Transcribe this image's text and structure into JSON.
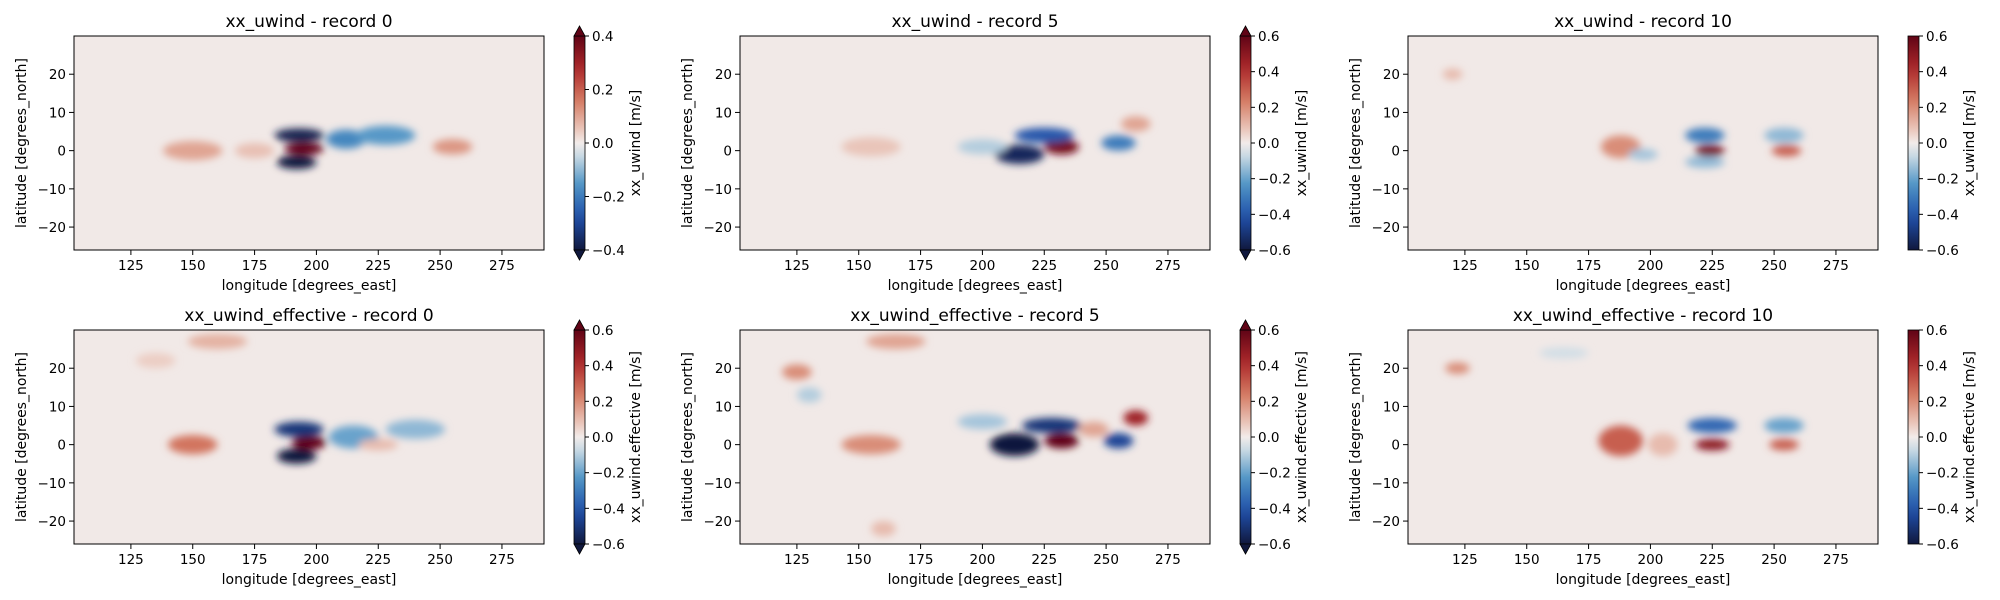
{
  "chart_data": [
    {
      "type": "heatmap",
      "title": "xx_uwind - record 0",
      "xlabel": "longitude [degrees_east]",
      "ylabel": "latitude [degrees_north]",
      "colorbar_label": "xx_uwind [m/s]",
      "xticks": [
        125,
        150,
        175,
        200,
        225,
        250,
        275
      ],
      "yticks": [
        -20,
        -10,
        0,
        10,
        20
      ],
      "xlim": [
        102,
        292
      ],
      "ylim": [
        -26,
        30
      ],
      "clim": [
        -0.4,
        0.4
      ],
      "cticks": [
        -0.4,
        -0.2,
        0.0,
        0.2,
        0.4
      ],
      "extend": "both",
      "features": [
        {
          "lon": 195,
          "lat": 0.5,
          "value": 0.4,
          "wlon": 8,
          "wlat": 1.6
        },
        {
          "lon": 193,
          "lat": 4,
          "value": -0.38,
          "wlon": 10,
          "wlat": 1.8
        },
        {
          "lon": 192,
          "lat": -3,
          "value": -0.4,
          "wlon": 8,
          "wlat": 1.8
        },
        {
          "lon": 212,
          "lat": 3,
          "value": -0.18,
          "wlon": 8,
          "wlat": 2.5
        },
        {
          "lon": 228,
          "lat": 4,
          "value": -0.15,
          "wlon": 12,
          "wlat": 2.5
        },
        {
          "lon": 255,
          "lat": 1,
          "value": 0.12,
          "wlon": 8,
          "wlat": 2
        },
        {
          "lon": 150,
          "lat": 0,
          "value": 0.1,
          "wlon": 12,
          "wlat": 2.5
        },
        {
          "lon": 175,
          "lat": 0,
          "value": 0.06,
          "wlon": 8,
          "wlat": 2
        }
      ]
    },
    {
      "type": "heatmap",
      "title": "xx_uwind - record 5",
      "xlabel": "longitude [degrees_east]",
      "ylabel": "latitude [degrees_north]",
      "colorbar_label": "xx_uwind [m/s]",
      "xticks": [
        125,
        150,
        175,
        200,
        225,
        250,
        275
      ],
      "yticks": [
        -20,
        -10,
        0,
        10,
        20
      ],
      "xlim": [
        102,
        292
      ],
      "ylim": [
        -26,
        30
      ],
      "clim": [
        -0.6,
        0.6
      ],
      "cticks": [
        -0.6,
        -0.4,
        -0.2,
        0.0,
        0.2,
        0.4,
        0.6
      ],
      "extend": "both",
      "features": [
        {
          "lon": 232,
          "lat": 1,
          "value": 0.55,
          "wlon": 7,
          "wlat": 2
        },
        {
          "lon": 215,
          "lat": -1,
          "value": -0.55,
          "wlon": 10,
          "wlat": 2.5
        },
        {
          "lon": 225,
          "lat": 4,
          "value": -0.4,
          "wlon": 12,
          "wlat": 2
        },
        {
          "lon": 255,
          "lat": 2,
          "value": -0.3,
          "wlon": 7,
          "wlat": 2
        },
        {
          "lon": 200,
          "lat": 1,
          "value": -0.1,
          "wlon": 10,
          "wlat": 2
        },
        {
          "lon": 262,
          "lat": 7,
          "value": 0.15,
          "wlon": 6,
          "wlat": 2
        },
        {
          "lon": 155,
          "lat": 1,
          "value": 0.08,
          "wlon": 12,
          "wlat": 2.5
        }
      ]
    },
    {
      "type": "heatmap",
      "title": "xx_uwind - record 10",
      "xlabel": "longitude [degrees_east]",
      "ylabel": "latitude [degrees_north]",
      "colorbar_label": "xx_uwind [m/s]",
      "xticks": [
        125,
        150,
        175,
        200,
        225,
        250,
        275
      ],
      "yticks": [
        -20,
        -10,
        0,
        10,
        20
      ],
      "xlim": [
        102,
        292
      ],
      "ylim": [
        -26,
        30
      ],
      "clim": [
        -0.6,
        0.6
      ],
      "cticks": [
        -0.6,
        -0.4,
        -0.2,
        0.0,
        0.2,
        0.4,
        0.6
      ],
      "extend": "neither",
      "features": [
        {
          "lon": 224,
          "lat": 0,
          "value": 0.55,
          "wlon": 6,
          "wlat": 1.5
        },
        {
          "lon": 222,
          "lat": 4,
          "value": -0.3,
          "wlon": 8,
          "wlat": 2
        },
        {
          "lon": 222,
          "lat": -3,
          "value": -0.15,
          "wlon": 8,
          "wlat": 1.5
        },
        {
          "lon": 255,
          "lat": 0,
          "value": 0.3,
          "wlon": 6,
          "wlat": 1.5
        },
        {
          "lon": 254,
          "lat": 4,
          "value": -0.15,
          "wlon": 8,
          "wlat": 2
        },
        {
          "lon": 188,
          "lat": 1,
          "value": 0.2,
          "wlon": 8,
          "wlat": 3
        },
        {
          "lon": 197,
          "lat": -1,
          "value": -0.12,
          "wlon": 6,
          "wlat": 1.5
        },
        {
          "lon": 120,
          "lat": 20,
          "value": 0.1,
          "wlon": 4,
          "wlat": 1.5
        }
      ]
    },
    {
      "type": "heatmap",
      "title": "xx_uwind_effective - record 0",
      "xlabel": "longitude [degrees_east]",
      "ylabel": "latitude [degrees_north]",
      "colorbar_label": "xx_uwind.effective [m/s]",
      "xticks": [
        125,
        150,
        175,
        200,
        225,
        250,
        275
      ],
      "yticks": [
        -20,
        -10,
        0,
        10,
        20
      ],
      "xlim": [
        102,
        292
      ],
      "ylim": [
        -26,
        30
      ],
      "clim": [
        -0.6,
        0.6
      ],
      "cticks": [
        -0.6,
        -0.4,
        -0.2,
        0.0,
        0.2,
        0.4,
        0.6
      ],
      "extend": "both",
      "features": [
        {
          "lon": 197,
          "lat": 0.5,
          "value": 0.6,
          "wlon": 7,
          "wlat": 1.8
        },
        {
          "lon": 193,
          "lat": 4,
          "value": -0.5,
          "wlon": 10,
          "wlat": 2
        },
        {
          "lon": 192,
          "lat": -3,
          "value": -0.6,
          "wlon": 8,
          "wlat": 2
        },
        {
          "lon": 150,
          "lat": 0,
          "value": 0.25,
          "wlon": 10,
          "wlat": 2.5
        },
        {
          "lon": 215,
          "lat": 2,
          "value": -0.2,
          "wlon": 10,
          "wlat": 3
        },
        {
          "lon": 240,
          "lat": 4,
          "value": -0.15,
          "wlon": 12,
          "wlat": 2.5
        },
        {
          "lon": 225,
          "lat": 0,
          "value": 0.1,
          "wlon": 8,
          "wlat": 1.5
        },
        {
          "lon": 160,
          "lat": 27,
          "value": 0.12,
          "wlon": 12,
          "wlat": 2
        },
        {
          "lon": 135,
          "lat": 22,
          "value": 0.06,
          "wlon": 8,
          "wlat": 2
        }
      ]
    },
    {
      "type": "heatmap",
      "title": "xx_uwind_effective - record 5",
      "xlabel": "longitude [degrees_east]",
      "ylabel": "latitude [degrees_north]",
      "colorbar_label": "xx_uwind.effective [m/s]",
      "xticks": [
        125,
        150,
        175,
        200,
        225,
        250,
        275
      ],
      "yticks": [
        -20,
        -10,
        0,
        10,
        20
      ],
      "xlim": [
        102,
        292
      ],
      "ylim": [
        -26,
        30
      ],
      "clim": [
        -0.6,
        0.6
      ],
      "cticks": [
        -0.6,
        -0.4,
        -0.2,
        0.0,
        0.2,
        0.4,
        0.6
      ],
      "extend": "both",
      "features": [
        {
          "lon": 232,
          "lat": 1,
          "value": 0.6,
          "wlon": 7,
          "wlat": 2
        },
        {
          "lon": 213,
          "lat": 0,
          "value": -0.6,
          "wlon": 10,
          "wlat": 3
        },
        {
          "lon": 228,
          "lat": 5,
          "value": -0.5,
          "wlon": 12,
          "wlat": 2
        },
        {
          "lon": 255,
          "lat": 1,
          "value": -0.45,
          "wlon": 6,
          "wlat": 2
        },
        {
          "lon": 262,
          "lat": 7,
          "value": 0.45,
          "wlon": 5,
          "wlat": 2
        },
        {
          "lon": 245,
          "lat": 4,
          "value": 0.15,
          "wlon": 6,
          "wlat": 2
        },
        {
          "lon": 155,
          "lat": 0,
          "value": 0.2,
          "wlon": 12,
          "wlat": 2.5
        },
        {
          "lon": 125,
          "lat": 19,
          "value": 0.2,
          "wlon": 6,
          "wlat": 2
        },
        {
          "lon": 165,
          "lat": 27,
          "value": 0.15,
          "wlon": 12,
          "wlat": 2
        },
        {
          "lon": 130,
          "lat": 13,
          "value": -0.1,
          "wlon": 5,
          "wlat": 2
        },
        {
          "lon": 200,
          "lat": 6,
          "value": -0.12,
          "wlon": 10,
          "wlat": 2
        },
        {
          "lon": 160,
          "lat": -22,
          "value": 0.1,
          "wlon": 5,
          "wlat": 2
        }
      ]
    },
    {
      "type": "heatmap",
      "title": "xx_uwind_effective - record 10",
      "xlabel": "longitude [degrees_east]",
      "ylabel": "latitude [degrees_north]",
      "colorbar_label": "xx_uwind.effective [m/s]",
      "xticks": [
        125,
        150,
        175,
        200,
        225,
        250,
        275
      ],
      "yticks": [
        -20,
        -10,
        0,
        10,
        20
      ],
      "xlim": [
        102,
        292
      ],
      "ylim": [
        -26,
        30
      ],
      "clim": [
        -0.6,
        0.6
      ],
      "cticks": [
        -0.6,
        -0.4,
        -0.2,
        0.0,
        0.2,
        0.4,
        0.6
      ],
      "extend": "neither",
      "features": [
        {
          "lon": 225,
          "lat": 0,
          "value": 0.5,
          "wlon": 7,
          "wlat": 1.5
        },
        {
          "lon": 225,
          "lat": 5,
          "value": -0.35,
          "wlon": 10,
          "wlat": 2
        },
        {
          "lon": 254,
          "lat": 0,
          "value": 0.3,
          "wlon": 6,
          "wlat": 1.5
        },
        {
          "lon": 254,
          "lat": 5,
          "value": -0.2,
          "wlon": 8,
          "wlat": 2
        },
        {
          "lon": 188,
          "lat": 1,
          "value": 0.3,
          "wlon": 9,
          "wlat": 4
        },
        {
          "lon": 122,
          "lat": 20,
          "value": 0.2,
          "wlon": 5,
          "wlat": 1.5
        },
        {
          "lon": 205,
          "lat": 0,
          "value": 0.1,
          "wlon": 6,
          "wlat": 3
        },
        {
          "lon": 165,
          "lat": 24,
          "value": -0.06,
          "wlon": 10,
          "wlat": 1.5
        }
      ]
    }
  ]
}
